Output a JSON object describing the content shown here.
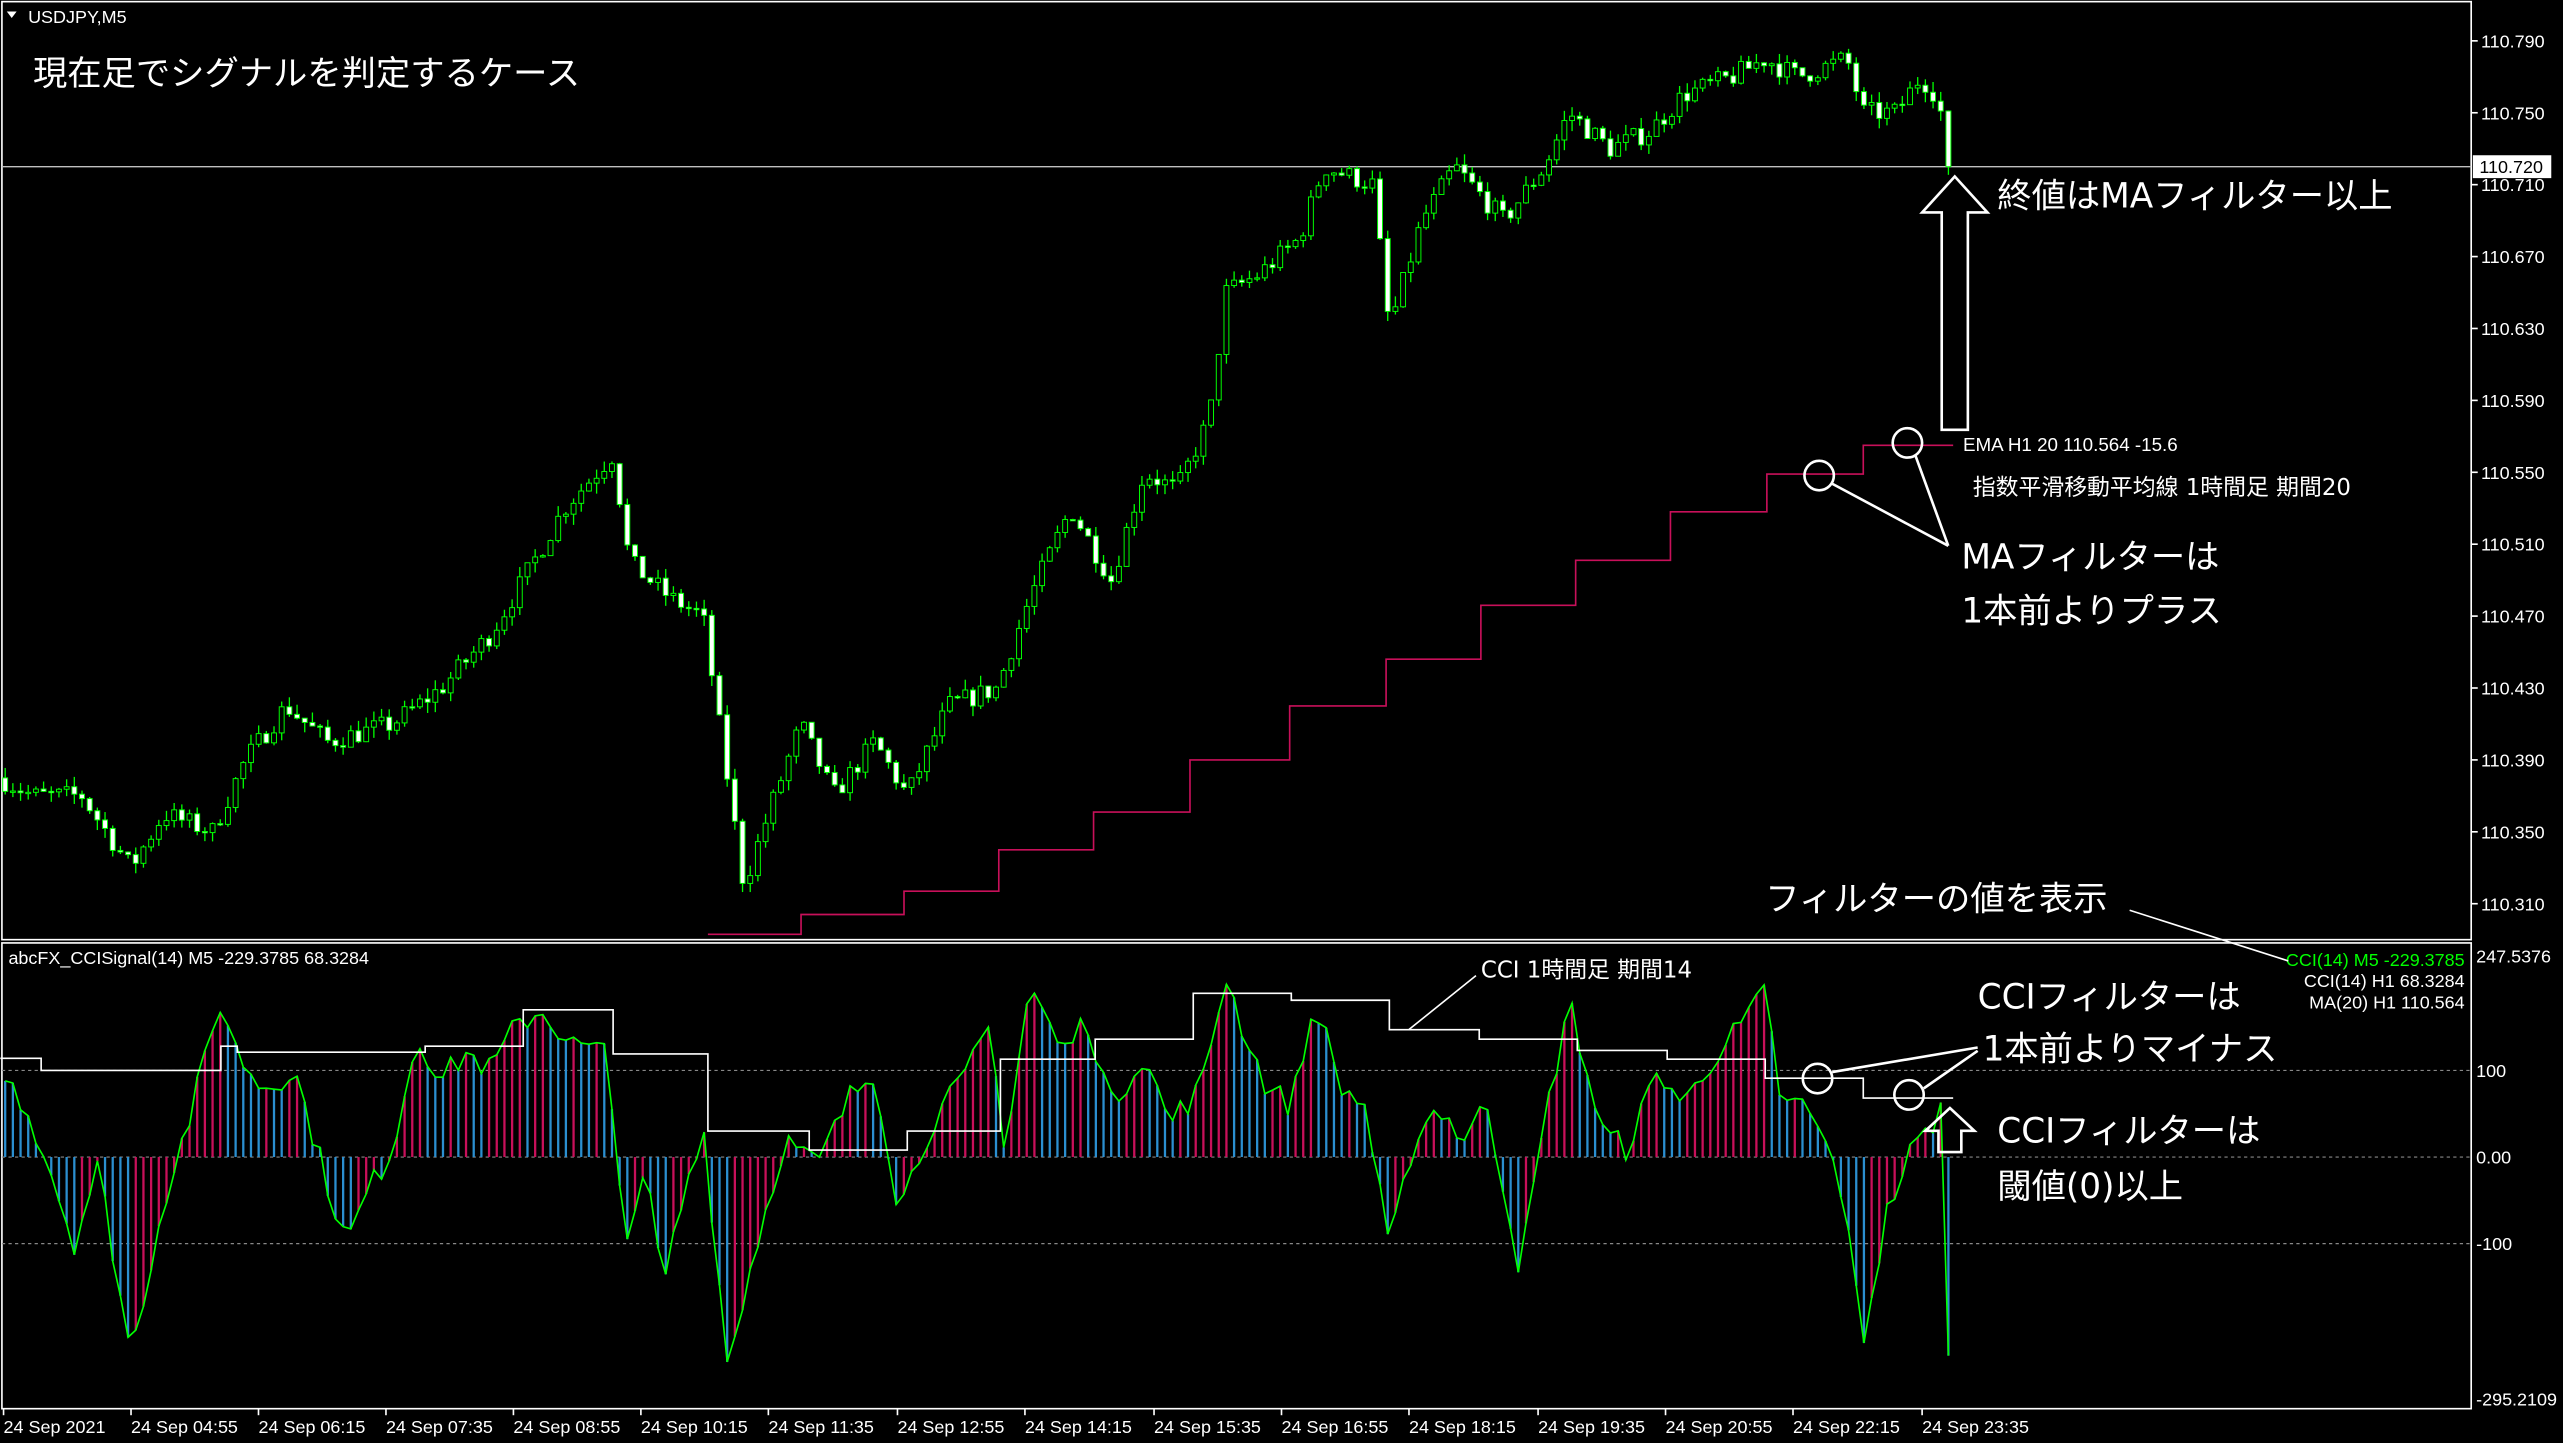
{
  "window": {
    "symbol_title": "USDJPY,M5"
  },
  "main_chart": {
    "price_labels": [
      "110.790",
      "110.750",
      "110.710",
      "110.670",
      "110.630",
      "110.590",
      "110.550",
      "110.510",
      "110.470",
      "110.430",
      "110.390",
      "110.350",
      "110.310"
    ],
    "current_price": "110.720",
    "colors": {
      "bull": "#00ff00",
      "bear": "#ffffff",
      "ema": "#c8105a",
      "price_line": "#c0c0c0"
    },
    "price_keypoints": [
      [
        0,
        110.38
      ],
      [
        20,
        110.37
      ],
      [
        50,
        110.37
      ],
      [
        80,
        110.33
      ],
      [
        100,
        110.36
      ],
      [
        130,
        110.35
      ],
      [
        150,
        110.39
      ],
      [
        175,
        110.42
      ],
      [
        200,
        110.4
      ],
      [
        240,
        110.41
      ],
      [
        270,
        110.43
      ],
      [
        300,
        110.46
      ],
      [
        320,
        110.49
      ],
      [
        345,
        110.53
      ],
      [
        375,
        110.56
      ],
      [
        385,
        110.5
      ],
      [
        410,
        110.48
      ],
      [
        430,
        110.47
      ],
      [
        445,
        110.38
      ],
      [
        455,
        110.32
      ],
      [
        470,
        110.36
      ],
      [
        490,
        110.41
      ],
      [
        510,
        110.37
      ],
      [
        535,
        110.4
      ],
      [
        555,
        110.37
      ],
      [
        580,
        110.42
      ],
      [
        610,
        110.43
      ],
      [
        630,
        110.48
      ],
      [
        655,
        110.53
      ],
      [
        680,
        110.49
      ],
      [
        700,
        110.55
      ],
      [
        720,
        110.54
      ],
      [
        740,
        110.58
      ],
      [
        750,
        110.65
      ],
      [
        770,
        110.66
      ],
      [
        795,
        110.68
      ],
      [
        810,
        110.72
      ],
      [
        840,
        110.71
      ],
      [
        850,
        110.63
      ],
      [
        870,
        110.69
      ],
      [
        890,
        110.72
      ],
      [
        920,
        110.69
      ],
      [
        945,
        110.72
      ],
      [
        960,
        110.75
      ],
      [
        985,
        110.73
      ],
      [
        1010,
        110.74
      ],
      [
        1030,
        110.76
      ],
      [
        1060,
        110.77
      ],
      [
        1080,
        110.78
      ],
      [
        1100,
        110.77
      ],
      [
        1130,
        110.78
      ],
      [
        1140,
        110.75
      ],
      [
        1160,
        110.75
      ],
      [
        1175,
        110.77
      ],
      [
        1185,
        110.76
      ],
      [
        1195,
        110.72
      ]
    ],
    "ema_h1_steps": [
      110.293,
      110.304,
      110.317,
      110.34,
      110.361,
      110.39,
      110.42,
      110.446,
      110.476,
      110.501,
      110.528,
      110.549,
      110.565
    ],
    "ema_label": "EMA H1  20  110.564  -15.6"
  },
  "annotations": {
    "title": "現在足でシグナルを判定するケース",
    "close_above_ma": "終値はMAフィルター以上",
    "ema_desc": "指数平滑移動平均線 1時間足 期間20",
    "ma_filter_1": "MAフィルターは",
    "ma_filter_2": "1本前よりプラス",
    "show_values": "フィルターの値を表示",
    "cci_desc": "CCI 1時間足 期間14",
    "cci_filter_1": "CCIフィルターは",
    "cci_filter_2": "1本前よりマイナス",
    "cci_thresh_1": "CCIフィルターは",
    "cci_thresh_2": "閾値(0)以上"
  },
  "sub_chart": {
    "indicator_title": "abcFX_CCISignal(14) M5 -229.3785 68.3284",
    "scale_labels": {
      "max": "247.5376",
      "l100": "100",
      "l0": "0.00",
      "lm100": "-100",
      "min": "-295.2109"
    },
    "legend": [
      {
        "text": "CCI(14) M5 -229.3785",
        "color": "#00ff00"
      },
      {
        "text": "CCI(14) H1 68.3284",
        "color": "#ffffff"
      },
      {
        "text": "MA(20)  H1 110.564",
        "color": "#ffffff"
      }
    ],
    "colors": {
      "line": "#00ff00",
      "up": "#c8105a",
      "down": "#2b8fd0",
      "h1": "#ffffff"
    },
    "cci_m5_keypoints": [
      [
        0,
        100
      ],
      [
        15,
        60
      ],
      [
        30,
        -10
      ],
      [
        45,
        -100
      ],
      [
        60,
        -10
      ],
      [
        80,
        -230
      ],
      [
        100,
        -50
      ],
      [
        115,
        40
      ],
      [
        135,
        180
      ],
      [
        145,
        120
      ],
      [
        160,
        80
      ],
      [
        180,
        100
      ],
      [
        200,
        -30
      ],
      [
        212,
        -100
      ],
      [
        225,
        -40
      ],
      [
        240,
        10
      ],
      [
        255,
        140
      ],
      [
        270,
        90
      ],
      [
        285,
        120
      ],
      [
        300,
        100
      ],
      [
        315,
        150
      ],
      [
        330,
        170
      ],
      [
        350,
        130
      ],
      [
        370,
        120
      ],
      [
        385,
        -110
      ],
      [
        395,
        -10
      ],
      [
        405,
        -150
      ],
      [
        420,
        -30
      ],
      [
        430,
        40
      ],
      [
        445,
        -240
      ],
      [
        460,
        -120
      ],
      [
        480,
        20
      ],
      [
        500,
        -10
      ],
      [
        520,
        70
      ],
      [
        535,
        100
      ],
      [
        550,
        -60
      ],
      [
        570,
        40
      ],
      [
        590,
        90
      ],
      [
        605,
        150
      ],
      [
        615,
        10
      ],
      [
        630,
        200
      ],
      [
        650,
        120
      ],
      [
        665,
        160
      ],
      [
        680,
        60
      ],
      [
        700,
        120
      ],
      [
        715,
        40
      ],
      [
        735,
        80
      ],
      [
        750,
        210
      ],
      [
        760,
        150
      ],
      [
        775,
        80
      ],
      [
        790,
        60
      ],
      [
        805,
        180
      ],
      [
        820,
        80
      ],
      [
        835,
        60
      ],
      [
        850,
        -110
      ],
      [
        865,
        20
      ],
      [
        880,
        60
      ],
      [
        895,
        20
      ],
      [
        910,
        60
      ],
      [
        930,
        -130
      ],
      [
        945,
        40
      ],
      [
        960,
        180
      ],
      [
        980,
        30
      ],
      [
        995,
        10
      ],
      [
        1015,
        100
      ],
      [
        1030,
        60
      ],
      [
        1050,
        120
      ],
      [
        1065,
        150
      ],
      [
        1080,
        190
      ],
      [
        1090,
        60
      ],
      [
        1105,
        60
      ],
      [
        1125,
        -20
      ],
      [
        1140,
        -210
      ],
      [
        1155,
        -60
      ],
      [
        1170,
        10
      ],
      [
        1180,
        30
      ],
      [
        1188,
        60
      ],
      [
        1195,
        -229
      ]
    ],
    "cci_h1_steps": [
      [
        0,
        114
      ],
      [
        25,
        100
      ],
      [
        135,
        128
      ],
      [
        145,
        121
      ],
      [
        260,
        128
      ],
      [
        320,
        170
      ],
      [
        375,
        119
      ],
      [
        433,
        30
      ],
      [
        495,
        8
      ],
      [
        555,
        30
      ],
      [
        612,
        113
      ],
      [
        670,
        136
      ],
      [
        730,
        189
      ],
      [
        790,
        181
      ],
      [
        850,
        147
      ],
      [
        905,
        136
      ],
      [
        965,
        123
      ],
      [
        1020,
        113
      ],
      [
        1080,
        91
      ],
      [
        1140,
        68
      ]
    ]
  },
  "time_axis": [
    "24 Sep 2021",
    "24 Sep 04:55",
    "24 Sep 06:15",
    "24 Sep 07:35",
    "24 Sep 08:55",
    "24 Sep 10:15",
    "24 Sep 11:35",
    "24 Sep 12:55",
    "24 Sep 14:15",
    "24 Sep 15:35",
    "24 Sep 16:55",
    "24 Sep 18:15",
    "24 Sep 19:35",
    "24 Sep 20:55",
    "24 Sep 22:15",
    "24 Sep 23:35"
  ]
}
